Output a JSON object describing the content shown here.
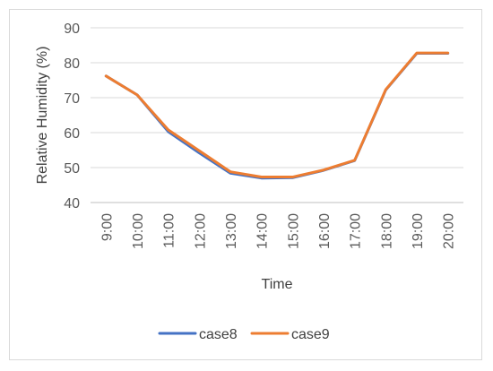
{
  "chart_data": {
    "type": "line",
    "title": "",
    "xlabel": "Time",
    "ylabel": "Relative Humidity  (%)",
    "categories": [
      "9:00",
      "10:00",
      "11:00",
      "12:00",
      "13:00",
      "14:00",
      "15:00",
      "16:00",
      "17:00",
      "18:00",
      "19:00",
      "20:00"
    ],
    "ylim": [
      40,
      90
    ],
    "yticks": [
      40,
      50,
      60,
      70,
      80,
      90
    ],
    "grid": true,
    "legend_position": "bottom",
    "series": [
      {
        "name": "case8",
        "color": "#4472C4",
        "values": [
          76.2,
          70.8,
          60.3,
          54.2,
          48.4,
          47.0,
          47.1,
          49.2,
          52.0,
          72.2,
          82.7,
          82.7
        ]
      },
      {
        "name": "case9",
        "color": "#ED7D31",
        "values": [
          76.2,
          70.8,
          60.8,
          54.8,
          48.8,
          47.3,
          47.3,
          49.3,
          52.1,
          72.3,
          82.8,
          82.8
        ]
      }
    ]
  }
}
